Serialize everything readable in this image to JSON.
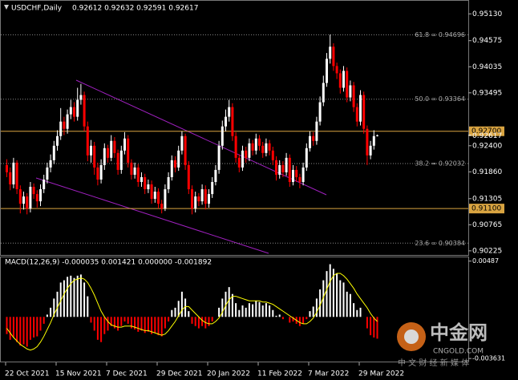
{
  "header": {
    "symbol": "USDCHF,Daily",
    "ohlc": "0.92612 0.92632 0.92591 0.92617"
  },
  "watermark": {
    "name": "中金网",
    "url": "CNGOLD.COM",
    "slogan": "中 文 财 经 新 媒 体"
  },
  "chart_data": [
    {
      "type": "candlestick",
      "categories": [
        "22 Oct 2021",
        null,
        null,
        null,
        null,
        null,
        null,
        null,
        null,
        null,
        null,
        null,
        null,
        null,
        null,
        "15 Nov 2021",
        null,
        null,
        null,
        null,
        null,
        null,
        null,
        null,
        null,
        null,
        null,
        null,
        null,
        null,
        "7 Dec 2021",
        null,
        null,
        null,
        null,
        null,
        null,
        null,
        null,
        null,
        null,
        null,
        null,
        null,
        null,
        "29 Dec 2021",
        null,
        null,
        null,
        null,
        null,
        null,
        null,
        null,
        null,
        null,
        null,
        null,
        null,
        null,
        "20 Jan 2022",
        null,
        null,
        null,
        null,
        null,
        null,
        null,
        null,
        null,
        null,
        null,
        null,
        null,
        null,
        "11 Feb 2022",
        null,
        null,
        null,
        null,
        null,
        null,
        null,
        null,
        null,
        null,
        null,
        null,
        null,
        null,
        "7 Mar 2022",
        null,
        null,
        null,
        null,
        null,
        null,
        null,
        null,
        null,
        null,
        null,
        null,
        null,
        null,
        "29 Mar 2022",
        null,
        null,
        null,
        null,
        null
      ],
      "open": [
        0.92,
        0.9185,
        0.916,
        0.9205,
        0.915,
        0.912,
        0.9135,
        0.911,
        0.9155,
        0.914,
        0.9125,
        0.915,
        0.917,
        0.9195,
        0.921,
        0.924,
        0.926,
        0.929,
        0.9275,
        0.9305,
        0.932,
        0.93,
        0.9335,
        0.9345,
        0.928,
        0.922,
        0.924,
        0.9195,
        0.917,
        0.92,
        0.9235,
        0.9215,
        0.925,
        0.9225,
        0.919,
        0.923,
        0.9255,
        0.9205,
        0.918,
        0.9195,
        0.9165,
        0.9175,
        0.915,
        0.916,
        0.913,
        0.9145,
        0.912,
        0.911,
        0.915,
        0.9175,
        0.921,
        0.9195,
        0.923,
        0.926,
        0.92,
        0.915,
        0.911,
        0.9135,
        0.9125,
        0.915,
        0.912,
        0.914,
        0.9165,
        0.919,
        0.924,
        0.928,
        0.93,
        0.932,
        0.926,
        0.9215,
        0.9195,
        0.923,
        0.9215,
        0.9245,
        0.923,
        0.9255,
        0.924,
        0.9225,
        0.9245,
        0.923,
        0.921,
        0.918,
        0.92,
        0.9185,
        0.9215,
        0.9165,
        0.919,
        0.9175,
        0.9165,
        0.9195,
        0.9235,
        0.926,
        0.925,
        0.929,
        0.933,
        0.937,
        0.942,
        0.9445,
        0.9405,
        0.939,
        0.936,
        0.9395,
        0.934,
        0.9365,
        0.932,
        0.929,
        0.9345,
        0.9275,
        0.922,
        0.924,
        0.92612
      ],
      "high": [
        0.9212,
        0.9195,
        0.9215,
        0.921,
        0.9158,
        0.9145,
        0.9142,
        0.9165,
        0.9162,
        0.9148,
        0.916,
        0.918,
        0.9205,
        0.9222,
        0.925,
        0.9272,
        0.9318,
        0.93,
        0.9315,
        0.9335,
        0.933,
        0.936,
        0.9368,
        0.9352,
        0.929,
        0.9252,
        0.9248,
        0.9205,
        0.9212,
        0.9245,
        0.9242,
        0.9262,
        0.9258,
        0.9232,
        0.924,
        0.9268,
        0.9262,
        0.9212,
        0.9205,
        0.9202,
        0.9185,
        0.9182,
        0.917,
        0.9168,
        0.9155,
        0.9152,
        0.9128,
        0.916,
        0.9185,
        0.922,
        0.9218,
        0.924,
        0.927,
        0.9265,
        0.9208,
        0.9158,
        0.9145,
        0.9142,
        0.916,
        0.9158,
        0.915,
        0.9175,
        0.92,
        0.925,
        0.9292,
        0.9315,
        0.9335,
        0.9328,
        0.9268,
        0.9222,
        0.924,
        0.9238,
        0.9255,
        0.9252,
        0.9265,
        0.9262,
        0.9248,
        0.9255,
        0.9252,
        0.9238,
        0.9218,
        0.921,
        0.9208,
        0.9225,
        0.9222,
        0.92,
        0.9198,
        0.9182,
        0.9205,
        0.9245,
        0.927,
        0.9268,
        0.93,
        0.9342,
        0.9385,
        0.9432,
        0.947,
        0.9452,
        0.9412,
        0.9398,
        0.9405,
        0.9402,
        0.9375,
        0.9372,
        0.9328,
        0.9355,
        0.9352,
        0.9282,
        0.925,
        0.9272,
        0.92632
      ],
      "low": [
        0.9175,
        0.9148,
        0.9152,
        0.914,
        0.91,
        0.9108,
        0.9098,
        0.9102,
        0.913,
        0.9112,
        0.9115,
        0.9142,
        0.9162,
        0.9185,
        0.9202,
        0.923,
        0.9252,
        0.9262,
        0.9265,
        0.9295,
        0.929,
        0.9292,
        0.9325,
        0.927,
        0.9208,
        0.9205,
        0.918,
        0.9158,
        0.9162,
        0.919,
        0.9205,
        0.9208,
        0.9215,
        0.918,
        0.9182,
        0.9222,
        0.9195,
        0.917,
        0.9172,
        0.9155,
        0.9155,
        0.914,
        0.9142,
        0.912,
        0.9122,
        0.911,
        0.91,
        0.9105,
        0.9142,
        0.9168,
        0.9185,
        0.9188,
        0.9222,
        0.919,
        0.914,
        0.9098,
        0.9102,
        0.9115,
        0.9118,
        0.9108,
        0.9112,
        0.9132,
        0.9158,
        0.9182,
        0.9232,
        0.927,
        0.929,
        0.925,
        0.9205,
        0.9185,
        0.9188,
        0.9205,
        0.9208,
        0.922,
        0.9222,
        0.923,
        0.9215,
        0.9218,
        0.922,
        0.92,
        0.9168,
        0.9172,
        0.9175,
        0.9178,
        0.9155,
        0.9158,
        0.9165,
        0.9152,
        0.9158,
        0.9188,
        0.9228,
        0.924,
        0.9242,
        0.9282,
        0.9322,
        0.9362,
        0.941,
        0.9395,
        0.9378,
        0.9348,
        0.9352,
        0.933,
        0.9332,
        0.931,
        0.928,
        0.9282,
        0.9265,
        0.92,
        0.9212,
        0.9232,
        0.92591
      ],
      "close": [
        0.9185,
        0.916,
        0.9205,
        0.915,
        0.912,
        0.9135,
        0.911,
        0.9155,
        0.914,
        0.9125,
        0.915,
        0.917,
        0.9195,
        0.921,
        0.924,
        0.926,
        0.929,
        0.9275,
        0.9305,
        0.932,
        0.93,
        0.9335,
        0.9345,
        0.928,
        0.922,
        0.924,
        0.9195,
        0.917,
        0.92,
        0.9235,
        0.9215,
        0.925,
        0.9225,
        0.919,
        0.923,
        0.9255,
        0.9205,
        0.918,
        0.9195,
        0.9165,
        0.9175,
        0.915,
        0.916,
        0.913,
        0.9145,
        0.912,
        0.911,
        0.915,
        0.9175,
        0.921,
        0.9195,
        0.923,
        0.926,
        0.92,
        0.915,
        0.911,
        0.9135,
        0.9125,
        0.915,
        0.912,
        0.914,
        0.9165,
        0.919,
        0.924,
        0.928,
        0.93,
        0.932,
        0.926,
        0.9215,
        0.9195,
        0.923,
        0.9215,
        0.9245,
        0.923,
        0.9255,
        0.924,
        0.9225,
        0.9245,
        0.923,
        0.921,
        0.918,
        0.92,
        0.9185,
        0.9215,
        0.9165,
        0.919,
        0.9175,
        0.9165,
        0.9195,
        0.9235,
        0.926,
        0.925,
        0.929,
        0.933,
        0.937,
        0.942,
        0.9445,
        0.9405,
        0.939,
        0.936,
        0.9395,
        0.934,
        0.9365,
        0.932,
        0.929,
        0.9345,
        0.9275,
        0.922,
        0.924,
        0.926,
        0.92617
      ],
      "up_color": "#ffffff",
      "down_color": "#ff0000",
      "ylim": [
        0.9014,
        0.954
      ],
      "yticks": [
        {
          "value": 0.9513,
          "label": "0.95130"
        },
        {
          "value": 0.94575,
          "label": "0.94575"
        },
        {
          "value": 0.94035,
          "label": "0.94035"
        },
        {
          "value": 0.93495,
          "label": "0.93495"
        },
        {
          "value": 0.924,
          "label": "0.92400"
        },
        {
          "value": 0.9186,
          "label": "0.91860"
        },
        {
          "value": 0.91305,
          "label": "0.91305"
        },
        {
          "value": 0.90765,
          "label": "0.90765"
        },
        {
          "value": 0.90225,
          "label": "0.90225"
        }
      ],
      "levels": [
        {
          "value": 0.927,
          "label": "0.92700",
          "color": "#d9a441"
        },
        {
          "value": 0.911,
          "label": "0.91100",
          "color": "#d9a441"
        }
      ],
      "last_price": {
        "value": 0.92617,
        "label": "0.92617"
      },
      "fib_levels": [
        {
          "value": 0.94696,
          "label": "61.8 = 0.94696"
        },
        {
          "value": 0.93364,
          "label": "50.0 = 0.93364"
        },
        {
          "value": 0.92032,
          "label": "38.2 = 0.92032"
        },
        {
          "value": 0.90384,
          "label": "23.6 = 0.90384"
        }
      ]
    },
    {
      "type": "macd",
      "title": "MACD(12,26,9) -0.000035 0.001421 0.000000 -0.001892",
      "ylim": [
        -0.0039,
        0.0052
      ],
      "yticks": [
        0.00487,
        -0.003631
      ],
      "up_color": "#ffffff",
      "down_color": "#ff0000",
      "histogram": [
        -0.0015,
        -0.002,
        -0.0018,
        -0.0022,
        -0.0025,
        -0.0024,
        -0.0026,
        -0.002,
        -0.0018,
        -0.0017,
        -0.0012,
        -0.0006,
        0.0002,
        0.0008,
        0.0016,
        0.0022,
        0.003,
        0.0032,
        0.0035,
        0.0036,
        0.0034,
        0.0036,
        0.0037,
        0.003,
        0.0018,
        -0.0005,
        -0.0012,
        -0.002,
        -0.0022,
        -0.0015,
        -0.0012,
        -0.0008,
        -0.001,
        -0.0012,
        -0.0008,
        -0.0004,
        -0.0006,
        -0.001,
        -0.0011,
        -0.0013,
        -0.0012,
        -0.0014,
        -0.0013,
        -0.0015,
        -0.0014,
        -0.0016,
        -0.0017,
        -0.001,
        -0.0004,
        0.0006,
        0.0008,
        0.0014,
        0.0022,
        0.0016,
        0.0005,
        -0.0006,
        -0.0008,
        -0.001,
        -0.0008,
        -0.001,
        -0.0008,
        -0.0004,
        0.0,
        0.0008,
        0.0016,
        0.0022,
        0.0026,
        0.002,
        0.0012,
        0.0006,
        0.001,
        0.0008,
        0.0012,
        0.0011,
        0.0014,
        0.0013,
        0.001,
        0.0012,
        0.001,
        0.0006,
        0.0001,
        0.0002,
        -0.0002,
        0.0,
        -0.0005,
        -0.0004,
        -0.0006,
        -0.0008,
        -0.0006,
        -0.0002,
        0.0005,
        0.0009,
        0.0016,
        0.0024,
        0.0032,
        0.004,
        0.0046,
        0.0042,
        0.0038,
        0.0032,
        0.003,
        0.0022,
        0.002,
        0.0012,
        0.0006,
        0.0008,
        0.0,
        -0.001,
        -0.0016,
        -0.0018,
        -0.0019
      ],
      "signal": {
        "color": "#ffff00",
        "values": [
          -0.001,
          -0.0014,
          -0.0018,
          -0.0021,
          -0.0024,
          -0.0026,
          -0.0028,
          -0.0029,
          -0.0028,
          -0.0026,
          -0.0022,
          -0.0017,
          -0.0011,
          -0.0005,
          0.0002,
          0.0008,
          0.0014,
          0.002,
          0.0025,
          0.0029,
          0.0032,
          0.0033,
          0.0034,
          0.0033,
          0.003,
          0.0025,
          0.0019,
          0.0012,
          0.0005,
          0.0,
          -0.0004,
          -0.0007,
          -0.0008,
          -0.0009,
          -0.0009,
          -0.0008,
          -0.0008,
          -0.0008,
          -0.0009,
          -0.001,
          -0.0011,
          -0.0012,
          -0.0012,
          -0.0013,
          -0.0014,
          -0.0015,
          -0.0016,
          -0.0015,
          -0.0012,
          -0.0008,
          -0.0004,
          0.0001,
          0.0006,
          0.0009,
          0.0009,
          0.0006,
          0.0003,
          0.0,
          -0.0003,
          -0.0005,
          -0.0006,
          -0.0006,
          -0.0004,
          -0.0001,
          0.0004,
          0.001,
          0.0015,
          0.0018,
          0.0018,
          0.0017,
          0.0016,
          0.0015,
          0.0014,
          0.0014,
          0.0014,
          0.0014,
          0.0013,
          0.0013,
          0.0012,
          0.0011,
          0.0009,
          0.0007,
          0.0005,
          0.0003,
          0.0001,
          -0.0001,
          -0.0003,
          -0.0005,
          -0.0006,
          -0.0006,
          -0.0004,
          -0.0001,
          0.0004,
          0.001,
          0.0017,
          0.0024,
          0.0031,
          0.0036,
          0.0038,
          0.0038,
          0.0036,
          0.0033,
          0.0029,
          0.0025,
          0.002,
          0.0016,
          0.0012,
          0.0008,
          0.0003,
          -0.0001,
          -0.0004
        ]
      }
    }
  ]
}
